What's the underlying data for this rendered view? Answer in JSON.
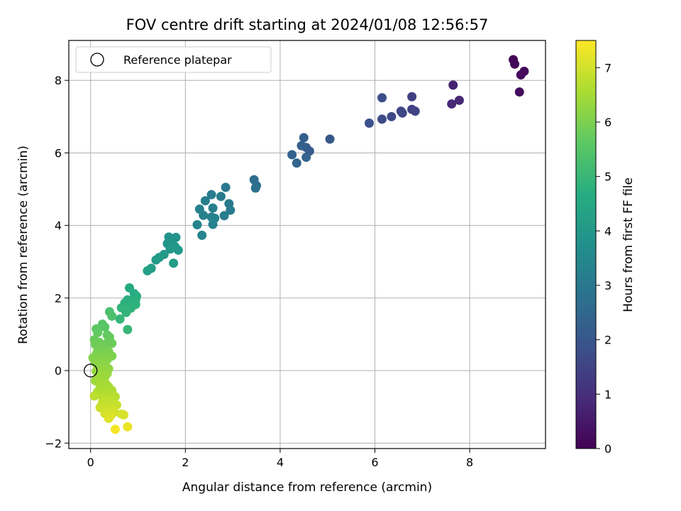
{
  "chart_data": {
    "type": "scatter",
    "title": "FOV centre drift starting at 2024/01/08 12:56:57",
    "xlabel": "Angular distance from reference (arcmin)",
    "ylabel": "Rotation from reference (arcmin)",
    "xlim": [
      -0.46,
      9.6
    ],
    "ylim": [
      -2.15,
      9.1
    ],
    "xticks": [
      0,
      2,
      4,
      6,
      8
    ],
    "yticks": [
      -2,
      0,
      2,
      4,
      6,
      8
    ],
    "grid": true,
    "legend": {
      "placement": "top-left",
      "entries": [
        "Reference platepar"
      ]
    },
    "reference_point": {
      "x": 0,
      "y": 0,
      "label": "Reference platepar"
    },
    "colorbar": {
      "label": "Hours from first FF file",
      "range": [
        0,
        7.5
      ],
      "ticks": [
        0,
        1,
        2,
        3,
        4,
        5,
        6,
        7
      ],
      "colormap": "viridis"
    },
    "columns": [
      "x",
      "y",
      "hours"
    ],
    "points": [
      [
        8.92,
        8.57,
        0.05
      ],
      [
        8.95,
        8.45,
        0.1
      ],
      [
        9.15,
        8.25,
        0.15
      ],
      [
        9.08,
        8.15,
        0.2
      ],
      [
        9.05,
        7.68,
        0.25
      ],
      [
        7.65,
        7.87,
        0.75
      ],
      [
        7.78,
        7.45,
        0.8
      ],
      [
        7.62,
        7.35,
        0.85
      ],
      [
        6.78,
        7.55,
        1.4
      ],
      [
        6.78,
        7.2,
        1.45
      ],
      [
        6.85,
        7.15,
        1.5
      ],
      [
        6.58,
        7.1,
        1.55
      ],
      [
        6.55,
        7.15,
        1.6
      ],
      [
        6.35,
        7.0,
        1.65
      ],
      [
        6.15,
        6.93,
        1.7
      ],
      [
        6.15,
        7.52,
        1.75
      ],
      [
        5.88,
        6.82,
        1.85
      ],
      [
        5.05,
        6.38,
        2.05
      ],
      [
        4.62,
        6.05,
        2.15
      ],
      [
        4.55,
        6.15,
        2.2
      ],
      [
        4.5,
        6.42,
        2.25
      ],
      [
        4.45,
        6.2,
        2.3
      ],
      [
        4.25,
        5.95,
        2.35
      ],
      [
        4.55,
        5.88,
        2.4
      ],
      [
        4.35,
        5.72,
        2.45
      ],
      [
        3.45,
        5.26,
        2.7
      ],
      [
        3.5,
        5.1,
        2.72
      ],
      [
        3.48,
        5.03,
        2.75
      ],
      [
        2.85,
        5.05,
        3.0
      ],
      [
        2.92,
        4.6,
        3.05
      ],
      [
        2.75,
        4.8,
        3.08
      ],
      [
        2.95,
        4.42,
        3.1
      ],
      [
        2.82,
        4.27,
        3.12
      ],
      [
        2.55,
        4.85,
        3.15
      ],
      [
        2.42,
        4.68,
        3.18
      ],
      [
        2.58,
        4.48,
        3.2
      ],
      [
        2.3,
        4.45,
        3.22
      ],
      [
        2.55,
        4.23,
        3.25
      ],
      [
        2.38,
        4.28,
        3.28
      ],
      [
        2.62,
        4.2,
        3.3
      ],
      [
        2.58,
        4.03,
        3.32
      ],
      [
        2.25,
        4.02,
        3.35
      ],
      [
        2.35,
        3.73,
        3.38
      ],
      [
        1.65,
        3.68,
        3.8
      ],
      [
        1.8,
        3.67,
        3.85
      ],
      [
        1.72,
        3.55,
        3.9
      ],
      [
        1.62,
        3.5,
        3.92
      ],
      [
        1.78,
        3.42,
        3.95
      ],
      [
        1.85,
        3.32,
        4.0
      ],
      [
        1.68,
        3.35,
        4.02
      ],
      [
        1.55,
        3.2,
        4.05
      ],
      [
        1.45,
        3.12,
        4.08
      ],
      [
        1.38,
        3.05,
        4.1
      ],
      [
        1.75,
        2.96,
        4.15
      ],
      [
        1.28,
        2.82,
        4.2
      ],
      [
        1.2,
        2.75,
        4.25
      ],
      [
        0.82,
        2.28,
        4.6
      ],
      [
        0.92,
        2.12,
        4.65
      ],
      [
        0.97,
        2.05,
        4.7
      ],
      [
        0.95,
        1.95,
        4.72
      ],
      [
        0.78,
        1.95,
        4.75
      ],
      [
        0.88,
        1.9,
        4.78
      ],
      [
        0.72,
        1.86,
        4.8
      ],
      [
        0.95,
        1.82,
        4.82
      ],
      [
        0.85,
        1.72,
        4.85
      ],
      [
        0.65,
        1.73,
        4.88
      ],
      [
        0.75,
        1.6,
        4.9
      ],
      [
        0.62,
        1.42,
        4.95
      ],
      [
        0.78,
        1.13,
        5.0
      ],
      [
        0.4,
        1.62,
        5.3
      ],
      [
        0.45,
        1.5,
        5.35
      ],
      [
        0.25,
        1.28,
        5.5
      ],
      [
        0.3,
        1.2,
        5.55
      ],
      [
        0.12,
        1.15,
        5.6
      ],
      [
        0.15,
        1.05,
        5.65
      ],
      [
        0.35,
        0.98,
        5.7
      ],
      [
        0.4,
        0.92,
        5.72
      ],
      [
        0.08,
        0.85,
        5.75
      ],
      [
        0.18,
        0.78,
        5.78
      ],
      [
        0.35,
        0.76,
        5.8
      ],
      [
        0.45,
        0.75,
        5.82
      ],
      [
        0.1,
        0.72,
        5.85
      ],
      [
        0.22,
        0.65,
        5.88
      ],
      [
        0.3,
        0.58,
        5.9
      ],
      [
        0.15,
        0.55,
        5.92
      ],
      [
        0.38,
        0.52,
        5.95
      ],
      [
        0.12,
        0.45,
        5.98
      ],
      [
        0.28,
        0.42,
        6.0
      ],
      [
        0.45,
        0.4,
        6.02
      ],
      [
        0.2,
        0.38,
        6.05
      ],
      [
        0.05,
        0.35,
        6.08
      ],
      [
        0.35,
        0.3,
        6.1
      ],
      [
        0.18,
        0.28,
        6.12
      ],
      [
        0.1,
        0.22,
        6.15
      ],
      [
        0.3,
        0.18,
        6.18
      ],
      [
        0.22,
        0.12,
        6.2
      ],
      [
        0.15,
        0.08,
        6.22
      ],
      [
        0.38,
        0.05,
        6.25
      ],
      [
        0.28,
        0.02,
        6.28
      ],
      [
        0.12,
        -0.02,
        6.3
      ],
      [
        0.35,
        -0.08,
        6.32
      ],
      [
        0.22,
        -0.12,
        6.35
      ],
      [
        0.3,
        -0.18,
        6.38
      ],
      [
        0.18,
        -0.22,
        6.4
      ],
      [
        0.1,
        -0.28,
        6.42
      ],
      [
        0.25,
        -0.32,
        6.45
      ],
      [
        0.33,
        -0.38,
        6.48
      ],
      [
        0.2,
        -0.42,
        6.5
      ],
      [
        0.38,
        -0.45,
        6.52
      ],
      [
        0.28,
        -0.52,
        6.55
      ],
      [
        0.45,
        -0.55,
        6.58
      ],
      [
        0.15,
        -0.58,
        6.6
      ],
      [
        0.35,
        -0.62,
        6.62
      ],
      [
        0.22,
        -0.68,
        6.65
      ],
      [
        0.42,
        -0.7,
        6.68
      ],
      [
        0.52,
        -0.72,
        6.7
      ],
      [
        0.3,
        -0.75,
        6.72
      ],
      [
        0.08,
        -0.7,
        6.75
      ],
      [
        0.48,
        -0.8,
        6.78
      ],
      [
        0.38,
        -0.85,
        6.8
      ],
      [
        0.25,
        -0.88,
        6.82
      ],
      [
        0.42,
        -0.92,
        6.85
      ],
      [
        0.55,
        -0.95,
        6.88
      ],
      [
        0.32,
        -1.0,
        6.9
      ],
      [
        0.2,
        -1.02,
        6.92
      ],
      [
        0.45,
        -1.05,
        6.95
      ],
      [
        0.35,
        -1.12,
        6.98
      ],
      [
        0.5,
        -1.15,
        7.0
      ],
      [
        0.3,
        -1.18,
        7.02
      ],
      [
        0.65,
        -1.2,
        7.05
      ],
      [
        0.7,
        -1.22,
        7.08
      ],
      [
        0.42,
        -1.25,
        7.1
      ],
      [
        0.38,
        -1.32,
        7.15
      ],
      [
        0.78,
        -1.55,
        7.3
      ],
      [
        0.52,
        -1.62,
        7.4
      ]
    ]
  }
}
